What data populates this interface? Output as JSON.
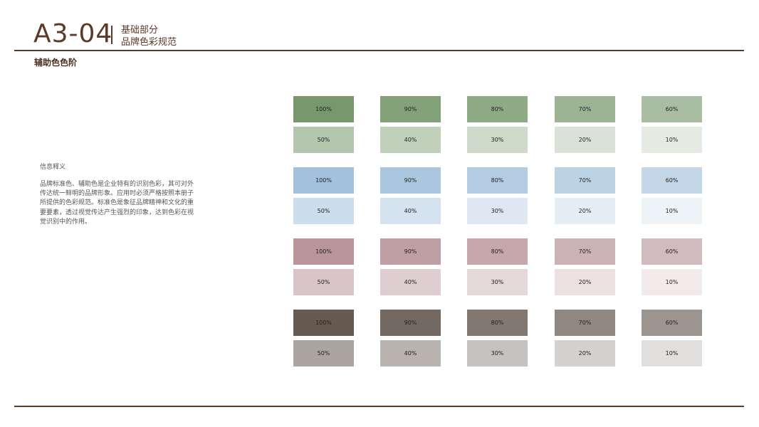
{
  "header": {
    "code": "A3-04",
    "subtitle1": "基础部分",
    "subtitle2": "品牌色彩规范"
  },
  "section_title": "辅助色色阶",
  "info": {
    "title": "信息释义",
    "text": "品牌标准色、辅助色是企业特有的识别色彩，其可对外传达统一鲜明的品牌形象。应用时必须严格按照本册子所提供的色彩规范。标准色是象征品牌精神和文化的重要要素，透过视觉传达产生强烈的印象，达到色彩在视觉识别中的作用。"
  },
  "palettes": [
    {
      "name": "green",
      "base": "#77986c"
    },
    {
      "name": "blue",
      "base": "#a3c1dc"
    },
    {
      "name": "pink",
      "base": "#b9959a"
    },
    {
      "name": "brown",
      "base": "#665a51"
    }
  ],
  "steps": [
    {
      "label": "100%",
      "value": 100
    },
    {
      "label": "90%",
      "value": 90
    },
    {
      "label": "80%",
      "value": 80
    },
    {
      "label": "70%",
      "value": 70
    },
    {
      "label": "60%",
      "value": 60
    },
    {
      "label": "50%",
      "value": 50
    },
    {
      "label": "40%",
      "value": 40
    },
    {
      "label": "30%",
      "value": 30
    },
    {
      "label": "20%",
      "value": 20
    },
    {
      "label": "10%",
      "value": 10
    }
  ]
}
